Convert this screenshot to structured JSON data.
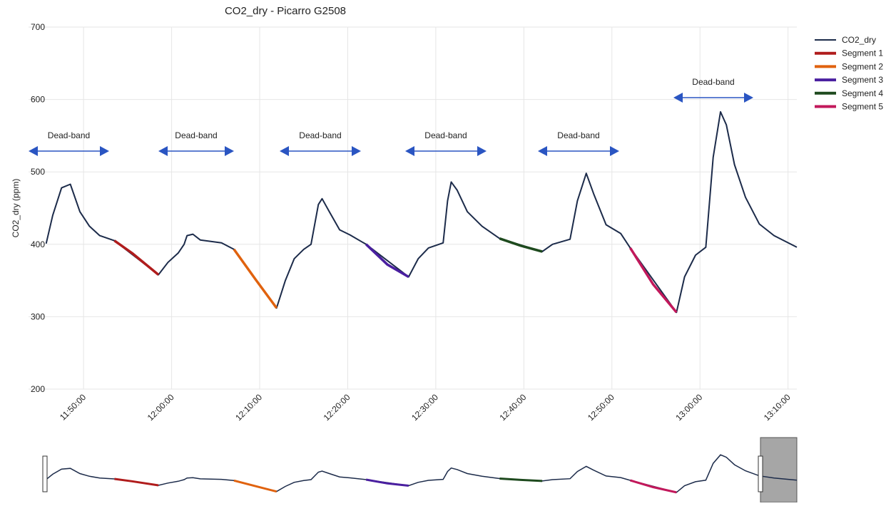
{
  "chart_data": {
    "type": "line",
    "title": "CO2_dry - Picarro G2508",
    "y_label": "CO2_dry (ppm)",
    "ylim": [
      200,
      700
    ],
    "yticks": [
      200,
      300,
      400,
      500,
      600,
      700
    ],
    "xlim": [
      "11:43:45",
      "13:11:00"
    ],
    "xticks": [
      "11:50:00",
      "12:00:00",
      "12:10:00",
      "12:20:00",
      "12:30:00",
      "12:40:00",
      "12:50:00",
      "13:00:00",
      "13:10:00"
    ],
    "grid": true,
    "legend": "right",
    "range_slider": true,
    "annotations": [
      "Dead-band",
      "Dead-band",
      "Dead-band",
      "Dead-band",
      "Dead-band",
      "Dead-band"
    ],
    "series": [
      {
        "name": "CO2_dry",
        "color": "#1c2b4a",
        "x": [
          "11:45:45",
          "11:46:30",
          "11:47:30",
          "11:48:30",
          "11:49:35",
          "11:50:40",
          "11:51:50",
          "11:53:30",
          "11:58:30",
          "11:59:35",
          "12:00:45",
          "12:01:25",
          "12:01:45",
          "12:02:25",
          "12:03:15",
          "12:05:40",
          "12:07:05",
          "12:11:55",
          "12:12:55",
          "12:13:55",
          "12:15:00",
          "12:15:50",
          "12:16:40",
          "12:17:05",
          "12:17:55",
          "12:19:05",
          "12:20:15",
          "12:22:05",
          "12:26:55",
          "12:28:00",
          "12:29:10",
          "12:30:50",
          "12:31:20",
          "12:31:45",
          "12:32:25",
          "12:33:35",
          "12:35:15",
          "12:37:15",
          "12:42:05",
          "12:43:15",
          "12:45:15",
          "12:46:05",
          "12:47:05",
          "12:47:55",
          "12:49:20",
          "12:51:00",
          "12:52:05",
          "12:57:20",
          "12:58:15",
          "12:59:30",
          "13:00:40",
          "13:01:30",
          "13:02:20",
          "13:03:00",
          "13:03:55",
          "13:05:10",
          "13:06:45",
          "13:08:25",
          "13:11:00"
        ],
        "values": [
          401,
          440,
          478,
          483,
          445,
          425,
          412,
          405,
          358,
          375,
          388,
          400,
          412,
          414,
          406,
          402,
          393,
          312,
          350,
          380,
          393,
          400,
          455,
          463,
          445,
          420,
          413,
          400,
          355,
          380,
          395,
          402,
          460,
          486,
          475,
          445,
          425,
          408,
          390,
          400,
          407,
          460,
          498,
          470,
          427,
          415,
          395,
          306,
          355,
          385,
          396,
          520,
          583,
          565,
          510,
          465,
          428,
          412,
          396
        ]
      },
      {
        "name": "Segment 1",
        "color": "#b01c1c",
        "x": [
          "11:53:30",
          "11:55:30",
          "11:58:30"
        ],
        "values": [
          405,
          388,
          358
        ]
      },
      {
        "name": "Segment 2",
        "color": "#e0620e",
        "x": [
          "12:07:05",
          "12:09:30",
          "12:11:55"
        ],
        "values": [
          393,
          352,
          312
        ]
      },
      {
        "name": "Segment 3",
        "color": "#4a1fa0",
        "x": [
          "12:22:05",
          "12:24:30",
          "12:26:55"
        ],
        "values": [
          400,
          372,
          355
        ]
      },
      {
        "name": "Segment 4",
        "color": "#1e4a1e",
        "x": [
          "12:37:15",
          "12:39:40",
          "12:42:05"
        ],
        "values": [
          408,
          398,
          390
        ]
      },
      {
        "name": "Segment 5",
        "color": "#c2185b",
        "x": [
          "12:52:05",
          "12:54:40",
          "12:57:20"
        ],
        "values": [
          395,
          345,
          306
        ]
      }
    ]
  }
}
